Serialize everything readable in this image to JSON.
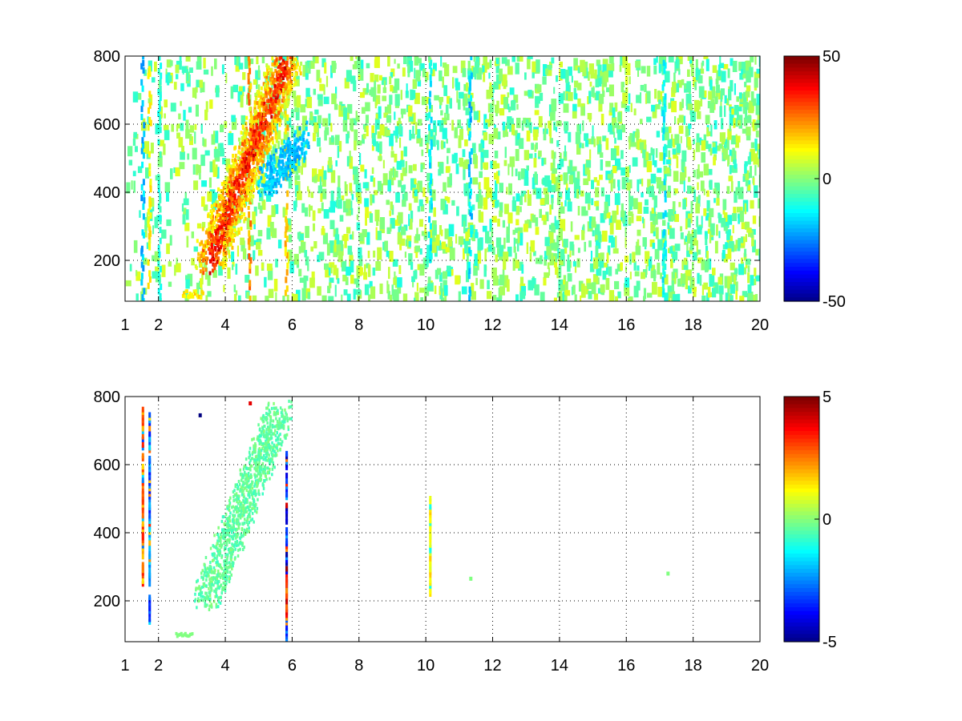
{
  "chart_data": [
    {
      "type": "heatmap",
      "title": "",
      "xlabel": "",
      "ylabel": "",
      "x_ticks": [
        1,
        2,
        4,
        6,
        8,
        10,
        12,
        14,
        16,
        18,
        20
      ],
      "y_ticks": [
        200,
        400,
        600,
        800
      ],
      "xlim": [
        1,
        20
      ],
      "ylim": [
        80,
        800
      ],
      "grid": true,
      "colormap": "jet",
      "clim": [
        -50,
        50
      ],
      "colorbar_ticks": [
        50,
        0,
        -50
      ],
      "features": {
        "diagonal_band": {
          "start": [
            3.5,
            200
          ],
          "end": [
            5.8,
            780
          ],
          "value": 30
        },
        "low_branch": [
          [
            5.1,
            420
          ],
          [
            6.4,
            560
          ]
        ],
        "low_branch_value": -18,
        "vertical_streaks": [
          {
            "x": 1.5,
            "value": -20
          },
          {
            "x": 1.7,
            "value": 15
          },
          {
            "x": 2.0,
            "value": -10
          },
          {
            "x": 4.7,
            "value": 25
          },
          {
            "x": 5.8,
            "value": 20
          },
          {
            "x": 10.1,
            "value": -15
          },
          {
            "x": 11.3,
            "value": -20
          },
          {
            "x": 17.1,
            "value": -15
          }
        ],
        "bottom_streak": {
          "x_range": [
            2.7,
            3.3
          ],
          "y": 100,
          "value": 15
        },
        "background_noise_amplitude": 10
      }
    },
    {
      "type": "heatmap",
      "title": "",
      "xlabel": "",
      "ylabel": "",
      "x_ticks": [
        1,
        2,
        4,
        6,
        8,
        10,
        12,
        14,
        16,
        18,
        20
      ],
      "y_ticks": [
        200,
        400,
        600,
        800
      ],
      "xlim": [
        1,
        20
      ],
      "ylim": [
        80,
        800
      ],
      "grid": true,
      "colormap": "jet",
      "clim": [
        -5,
        5
      ],
      "colorbar_ticks": [
        5,
        0,
        -5
      ],
      "features": {
        "diagonal_band": {
          "start": [
            3.4,
            200
          ],
          "end": [
            5.6,
            760
          ],
          "value": -0.3
        },
        "vertical_streaks": [
          {
            "x": 5.8,
            "y_range": [
              80,
              640
            ],
            "value": -4
          },
          {
            "x": 5.8,
            "y_range": [
              150,
              300
            ],
            "value": 4
          },
          {
            "x": 10.1,
            "y_range": [
              220,
              530
            ],
            "value": 1.5
          },
          {
            "x": 1.5,
            "y_range": [
              250,
              770
            ],
            "value": 3
          },
          {
            "x": 1.7,
            "y_range": [
              130,
              770
            ],
            "value": -3
          }
        ],
        "bottom_streak": {
          "x_range": [
            2.5,
            3.0
          ],
          "y": 100,
          "value": 0
        },
        "isolated_points": [
          {
            "x": 17.2,
            "y": 280,
            "value": 0
          },
          {
            "x": 11.3,
            "y": 265,
            "value": 0
          },
          {
            "x": 4.7,
            "y": 780,
            "value": 4
          },
          {
            "x": 3.2,
            "y": 745,
            "value": -5
          }
        ]
      }
    }
  ]
}
